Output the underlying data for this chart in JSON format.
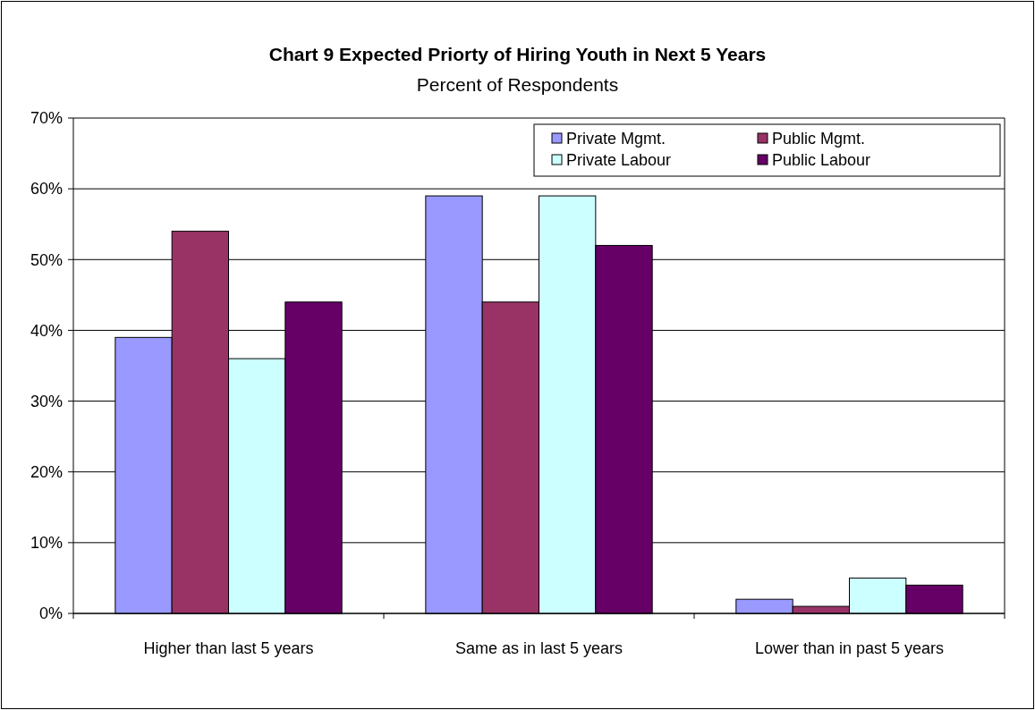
{
  "chart_data": {
    "type": "bar",
    "title": "Chart 9 Expected Priorty of Hiring Youth in Next 5 Years",
    "subtitle": "Percent of Respondents",
    "categories": [
      "Higher than last 5 years",
      "Same as in last 5 years",
      "Lower than in past 5 years"
    ],
    "series": [
      {
        "name": "Private Mgmt.",
        "color": "#9999ff",
        "values": [
          39,
          59,
          2
        ]
      },
      {
        "name": "Public Mgmt.",
        "color": "#993366",
        "values": [
          54,
          44,
          1
        ]
      },
      {
        "name": "Private Labour",
        "color": "#ccffff",
        "values": [
          36,
          59,
          5
        ]
      },
      {
        "name": "Public Labour",
        "color": "#660066",
        "values": [
          44,
          52,
          4
        ]
      }
    ],
    "ylim": [
      0,
      70
    ],
    "yticks": [
      {
        "value": 0,
        "label": "0%"
      },
      {
        "value": 10,
        "label": "10%"
      },
      {
        "value": 20,
        "label": "20%"
      },
      {
        "value": 30,
        "label": "30%"
      },
      {
        "value": 40,
        "label": "40%"
      },
      {
        "value": 50,
        "label": "50%"
      },
      {
        "value": 60,
        "label": "60%"
      },
      {
        "value": 70,
        "label": "70%"
      }
    ],
    "grid": "y",
    "legend": "top right"
  }
}
